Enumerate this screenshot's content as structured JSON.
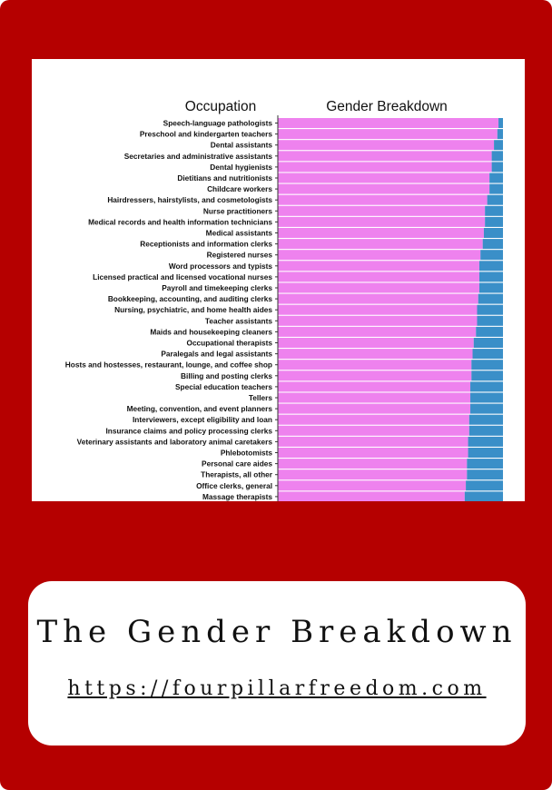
{
  "caption": {
    "title": "The Gender Breakdown",
    "url": "https://fourpillarfreedom.com"
  },
  "colors": {
    "frame": "#b50000",
    "female": "#ee82ee",
    "male": "#3a8fc8"
  },
  "chart_data": {
    "type": "bar",
    "orientation": "horizontal-stacked",
    "left_header": "Occupation",
    "title": "Gender Breakdown",
    "xlim": [
      0,
      100
    ],
    "grid": false,
    "categories": [
      "Speech-language pathologists",
      "Preschool and kindergarten teachers",
      "Dental assistants",
      "Secretaries and administrative assistants",
      "Dental hygienists",
      "Dietitians and nutritionists",
      "Childcare workers",
      "Hairdressers, hairstylists, and cosmetologists",
      "Nurse practitioners",
      "Medical records and health information technicians",
      "Medical assistants",
      "Receptionists and information clerks",
      "Registered nurses",
      "Word processors and typists",
      "Licensed practical and licensed vocational nurses",
      "Payroll and timekeeping clerks",
      "Bookkeeping, accounting, and auditing clerks",
      "Nursing, psychiatric, and home health aides",
      "Teacher assistants",
      "Maids and housekeeping cleaners",
      "Occupational therapists",
      "Paralegals and legal assistants",
      "Hosts and hostesses, restaurant, lounge, and coffee shop",
      "Billing and posting clerks",
      "Special education teachers",
      "Tellers",
      "Meeting, convention, and event planners",
      "Interviewers, except eligibility and loan",
      "Insurance claims and policy processing clerks",
      "Veterinary assistants and laboratory animal caretakers",
      "Phlebotomists",
      "Personal care aides",
      "Therapists, all other",
      "Office clerks, general",
      "Massage therapists"
    ],
    "series": [
      {
        "key": "female",
        "values": [
          98,
          97.5,
          96,
          95,
          95,
          94,
          94,
          93,
          92,
          92,
          91.5,
          91,
          90,
          89.5,
          89.5,
          89.5,
          89,
          88.5,
          88.5,
          88,
          87,
          86.5,
          86,
          86,
          85.5,
          85.5,
          85.5,
          85,
          85,
          84.5,
          84.5,
          84,
          84,
          83.5,
          83
        ]
      },
      {
        "key": "male",
        "values": [
          2,
          2.5,
          4,
          5,
          5,
          6,
          6,
          7,
          8,
          8,
          8.5,
          9,
          10,
          10.5,
          10.5,
          10.5,
          11,
          11.5,
          11.5,
          12,
          13,
          13.5,
          14,
          14,
          14.5,
          14.5,
          14.5,
          15,
          15,
          15.5,
          15.5,
          16,
          16,
          16.5,
          17
        ]
      }
    ]
  }
}
